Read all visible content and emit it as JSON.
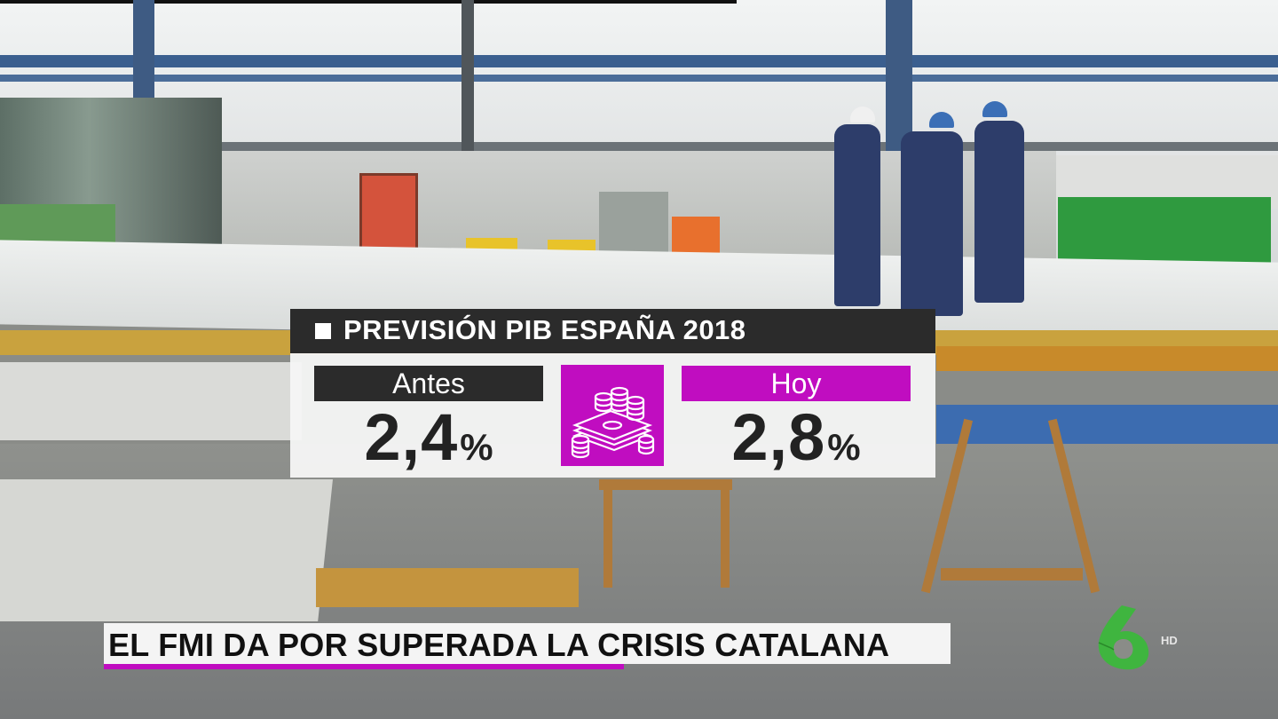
{
  "graphic": {
    "title": "PREVISIÓN PIB ESPAÑA 2018",
    "before": {
      "label": "Antes",
      "value": "2,4",
      "unit": "%"
    },
    "today": {
      "label": "Hoy",
      "value": "2,8",
      "unit": "%"
    },
    "icon": "money-coins-icon",
    "colors": {
      "dark": "#2b2b2b",
      "accent": "#c00dc0"
    }
  },
  "lower_third": {
    "headline": "EL FMI DA POR SUPERADA LA CRISIS CATALANA",
    "accent_color": "#c00dc0"
  },
  "channel": {
    "logo": "la-sexta-logo-icon",
    "badge": "HD",
    "logo_color": "#3fb53f"
  }
}
